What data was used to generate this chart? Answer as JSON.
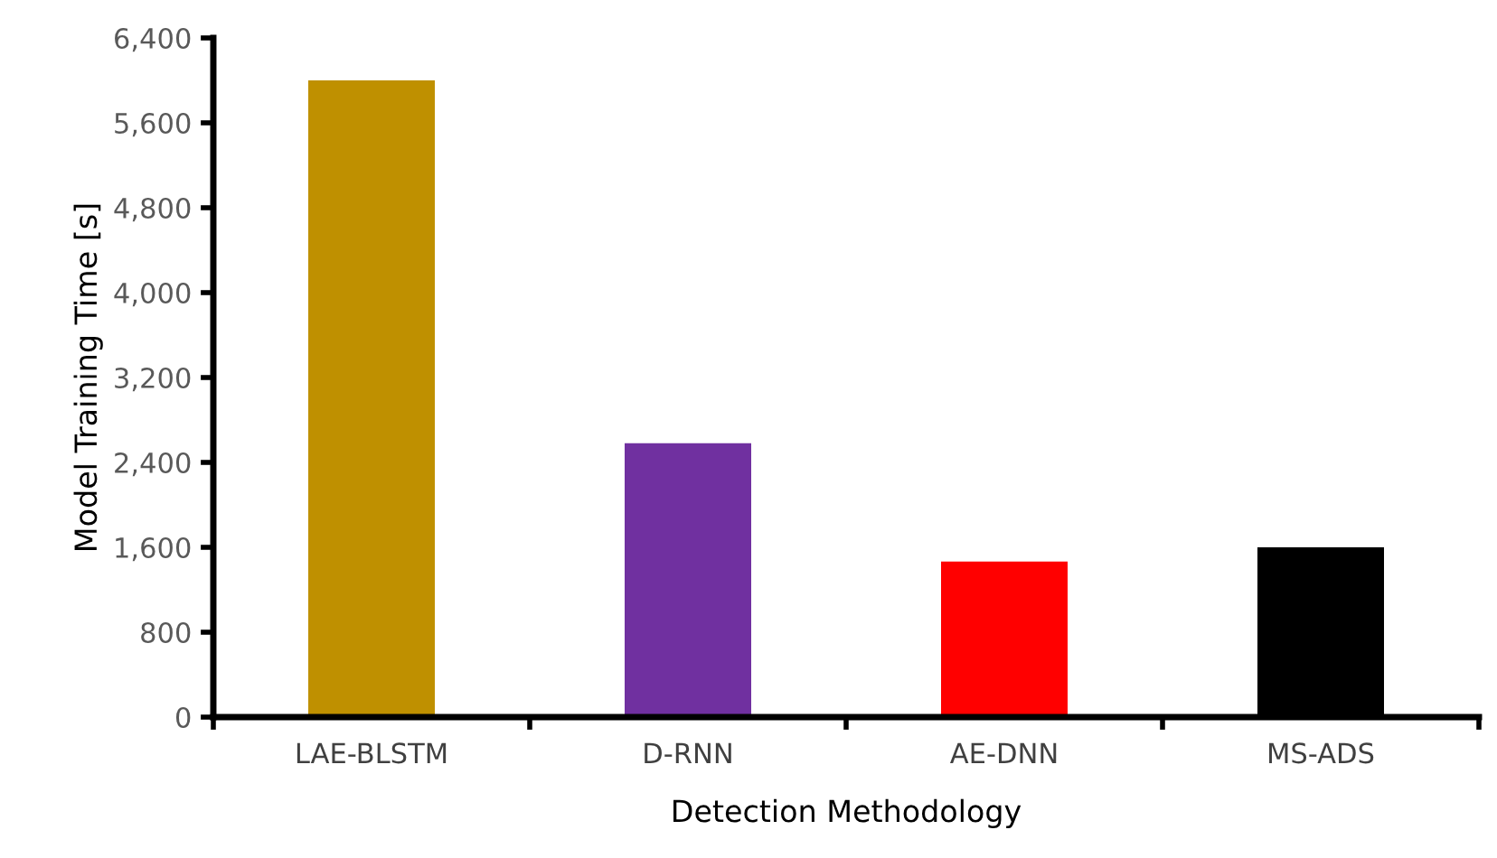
{
  "chart_data": {
    "type": "bar",
    "xlabel": "Detection Methodology",
    "ylabel": "Model Training Time [s]",
    "categories": [
      "LAE-BLSTM",
      "D-RNN",
      "AE-DNN",
      "MS-ADS"
    ],
    "values": [
      6000,
      2580,
      1465,
      1600
    ],
    "colors": [
      "#bf9000",
      "#7030a0",
      "#ff0000",
      "#000000"
    ],
    "ylim": [
      0,
      6400
    ],
    "yticks": [
      0,
      {
        "value": 800,
        "label": "800"
      },
      {
        "value": 1600,
        "label": "1,600"
      },
      {
        "value": 2400,
        "label": "2,400"
      },
      {
        "value": 3200,
        "label": "3,200"
      },
      {
        "value": 4000,
        "label": "4,000"
      },
      {
        "value": 4800,
        "label": "4,800"
      },
      {
        "value": 5600,
        "label": "5,600"
      },
      {
        "value": 6400,
        "label": "6,400"
      }
    ],
    "grid": false,
    "legend": false
  }
}
